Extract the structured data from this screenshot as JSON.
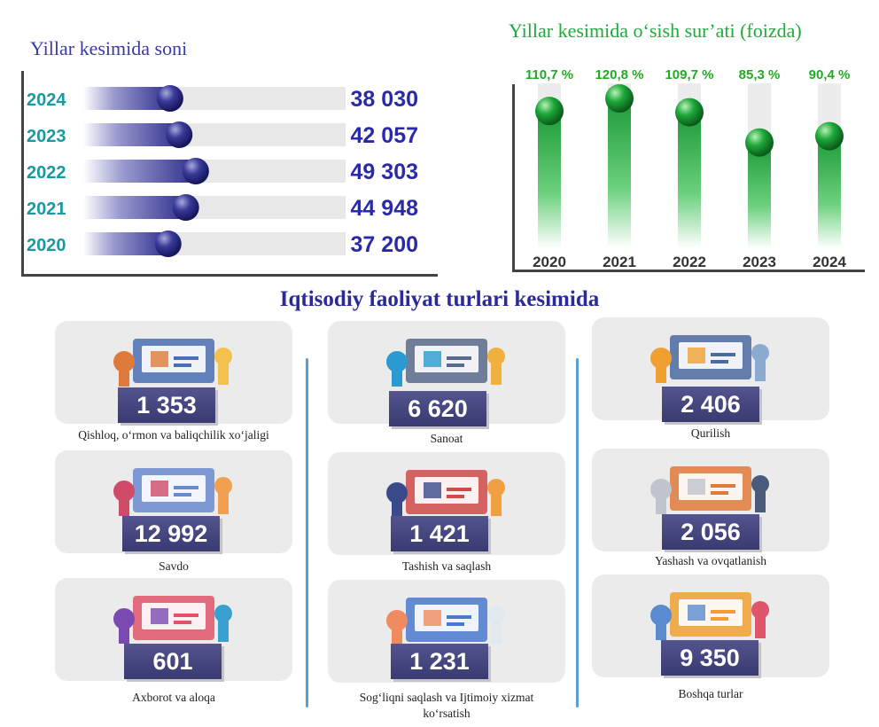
{
  "chart_data": [
    {
      "type": "bar",
      "orientation": "horizontal",
      "title": "Yillar kesimida soni",
      "categories": [
        "2024",
        "2023",
        "2022",
        "2021",
        "2020"
      ],
      "values": [
        38030,
        42057,
        49303,
        44948,
        37200
      ],
      "value_labels": [
        "38 030",
        "42 057",
        "49 303",
        "44 948",
        "37 200"
      ],
      "xlim": [
        0,
        115000
      ],
      "colors": {
        "bar": "#3a3a96",
        "track": "#e8e8e8",
        "category": "#1a9aa0",
        "value": "#2a2aa8"
      }
    },
    {
      "type": "bar",
      "orientation": "vertical",
      "title": "Yillar kesimida o‘sish sur’ati (foizda)",
      "categories": [
        "2020",
        "2021",
        "2022",
        "2023",
        "2024"
      ],
      "values": [
        110.7,
        120.8,
        109.7,
        85.3,
        90.4
      ],
      "value_labels": [
        "110,7 %",
        "120,8 %",
        "109,7 %",
        "85,3 %",
        "90,4 %"
      ],
      "ylim": [
        0,
        133
      ],
      "colors": {
        "bar": "#1faa3c",
        "track": "#ececec",
        "label": "#22aa22",
        "category": "#333333"
      }
    }
  ],
  "section_title": "Iqtisodiy faoliyat turlari kesimida",
  "activities": [
    {
      "value": "1 353",
      "label": "Qishloq, o‘rmon va baliqchilik xo‘jaligi",
      "icon": "agriculture-icon"
    },
    {
      "value": "12 992",
      "label": "Savdo",
      "icon": "shopping-icon"
    },
    {
      "value": "601",
      "label": "Axborot va aloqa",
      "icon": "it-laptop-icon"
    },
    {
      "value": "6 620",
      "label": "Sanoat",
      "icon": "factory-icon"
    },
    {
      "value": "1 421",
      "label": "Tashish va saqlash",
      "icon": "truck-icon"
    },
    {
      "value": "1 231",
      "label": "Sog‘liqni saqlash va Ijtimoiy xizmat ko‘rsatish",
      "icon": "medical-icon"
    },
    {
      "value": "2 406",
      "label": "Qurilish",
      "icon": "construction-icon"
    },
    {
      "value": "2 056",
      "label": "Yashash va ovqatlanish",
      "icon": "cloche-icon"
    },
    {
      "value": "9 350",
      "label": "Boshqa turlar",
      "icon": "analytics-icon"
    }
  ]
}
